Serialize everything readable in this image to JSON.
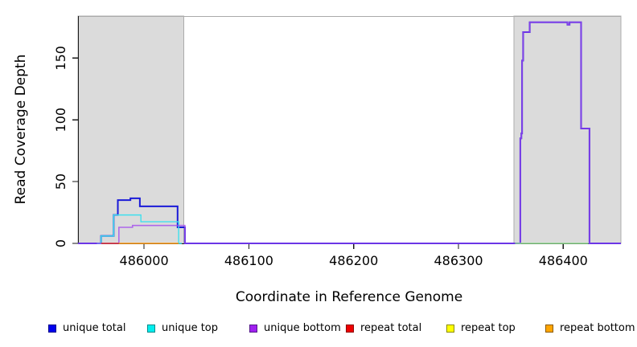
{
  "chart_data": {
    "type": "line",
    "subtype": "step-coverage",
    "title": "",
    "xlabel": "Coordinate in Reference Genome",
    "ylabel": "Read Coverage Depth",
    "xlim": [
      485937,
      486455
    ],
    "ylim": [
      0,
      184
    ],
    "grid": false,
    "legend_position": "bottom",
    "x_ticks": [
      486000,
      486100,
      486200,
      486300,
      486400
    ],
    "y_ticks": [
      0,
      50,
      100,
      150
    ],
    "shaded_regions": [
      {
        "name": "masked-region-left",
        "x1": 485937,
        "x2": 486038,
        "fill": "#DBDBDB",
        "stroke": "#ACACAC"
      },
      {
        "name": "masked-region-right",
        "x1": 486353,
        "x2": 486455,
        "fill": "#DBDBDB",
        "stroke": "#ACACAC"
      }
    ],
    "series": [
      {
        "name": "unique total",
        "color": "#1A1AD8",
        "lw": 2,
        "points": [
          [
            485937,
            0
          ],
          [
            485959,
            6
          ],
          [
            485971,
            23
          ],
          [
            485975,
            35
          ],
          [
            485987,
            36.5
          ],
          [
            485996,
            30
          ],
          [
            486032,
            13
          ],
          [
            486039,
            0
          ],
          [
            486359,
            85
          ],
          [
            486360,
            89
          ],
          [
            486360.7,
            148
          ],
          [
            486361.7,
            171
          ],
          [
            486368,
            179
          ],
          [
            486404,
            177
          ],
          [
            486406,
            179
          ],
          [
            486417,
            93
          ],
          [
            486425,
            0
          ]
        ],
        "xend": 486455
      },
      {
        "name": "unique top",
        "color": "#3FE0EE",
        "lw": 1.4,
        "points": [
          [
            485955,
            0
          ],
          [
            485959,
            6
          ],
          [
            485971,
            23
          ],
          [
            485997,
            17.5
          ],
          [
            486033,
            0
          ]
        ],
        "xend": 486036
      },
      {
        "name": "unique bottom",
        "color": "#A24AEF",
        "lw": 1.6,
        "opacity": 0.8,
        "points": [
          [
            485937,
            0
          ],
          [
            485976,
            13
          ],
          [
            485989,
            14.5
          ],
          [
            486039,
            0
          ],
          [
            486359,
            85
          ],
          [
            486360,
            89
          ],
          [
            486360.7,
            148
          ],
          [
            486361.7,
            171
          ],
          [
            486368,
            179
          ],
          [
            486404,
            177
          ],
          [
            486406,
            179
          ],
          [
            486417,
            93
          ],
          [
            486425,
            0
          ]
        ],
        "xend": 486455
      },
      {
        "name": "repeat total",
        "color": "#E03232",
        "lw": 1.4,
        "points": [
          [
            485959,
            0
          ]
        ],
        "xend": 485976
      },
      {
        "name": "repeat bottom",
        "color": "#FF9912",
        "lw": 1.4,
        "points": [
          [
            485976,
            0
          ]
        ],
        "xend": 486033
      }
    ],
    "overlap_segments": [
      {
        "name": "repeat-top-unique-top-overlap",
        "color": "#8CD88C",
        "y": 0,
        "x1": 486354,
        "x2": 486424
      }
    ],
    "frame": {
      "top_line_color": "#AAAAAA",
      "axis_color": "#1A1A1A"
    }
  },
  "legend": {
    "items": [
      {
        "label": "unique total",
        "color": "#0000EE",
        "border": "#00008B"
      },
      {
        "label": "unique top",
        "color": "#00EEEE",
        "border": "#008B8B"
      },
      {
        "label": "unique bottom",
        "color": "#A020F0",
        "border": "#551A8B"
      },
      {
        "label": "repeat total",
        "color": "#EE0000",
        "border": "#8B0000"
      },
      {
        "label": "repeat top",
        "color": "#FFFF00",
        "border": "#8B8B00"
      },
      {
        "label": "repeat bottom",
        "color": "#FFA500",
        "border": "#8B5A00"
      }
    ]
  }
}
